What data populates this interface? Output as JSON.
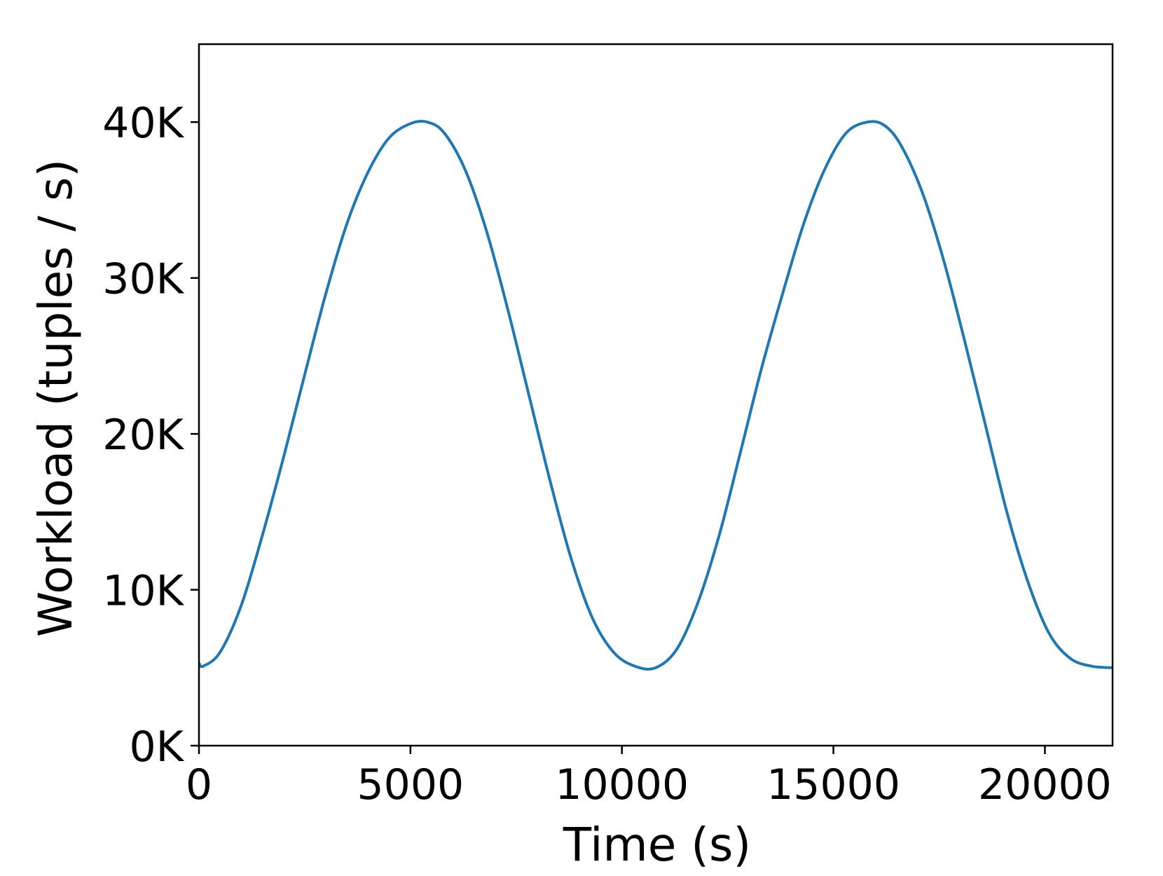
{
  "chart_data": {
    "type": "line",
    "title": "",
    "xlabel": "Time (s)",
    "ylabel": "Workload (tuples / s)",
    "xlim": [
      0,
      21600
    ],
    "ylim": [
      0,
      45000
    ],
    "grid": false,
    "x_ticks": [
      {
        "value": 0,
        "label": "0"
      },
      {
        "value": 5000,
        "label": "5000"
      },
      {
        "value": 10000,
        "label": "10000"
      },
      {
        "value": 15000,
        "label": "15000"
      },
      {
        "value": 20000,
        "label": "20000"
      }
    ],
    "y_ticks": [
      {
        "value": 0,
        "label": "0K"
      },
      {
        "value": 10000,
        "label": "10K"
      },
      {
        "value": 20000,
        "label": "20K"
      },
      {
        "value": 30000,
        "label": "30K"
      },
      {
        "value": 40000,
        "label": "40K"
      }
    ],
    "series": [
      {
        "color": "#1f77b4",
        "x": [
          0,
          100,
          500,
          1000,
          1500,
          2000,
          2500,
          3000,
          3500,
          4000,
          4500,
          5000,
          5400,
          5800,
          6300,
          6800,
          7300,
          7800,
          8300,
          8800,
          9300,
          9800,
          10300,
          10800,
          11300,
          11800,
          12300,
          12800,
          13300,
          13800,
          14300,
          14800,
          15300,
          15800,
          16200,
          16600,
          17100,
          17600,
          18100,
          18600,
          19100,
          19600,
          20100,
          20600,
          21100,
          21600
        ],
        "y": [
          5300,
          5100,
          6000,
          9000,
          13500,
          18500,
          23800,
          29000,
          33500,
          36800,
          39000,
          39900,
          40000,
          39300,
          36900,
          33000,
          28000,
          22500,
          17000,
          12000,
          8200,
          6000,
          5100,
          5000,
          6200,
          9200,
          13500,
          18800,
          24200,
          29000,
          33500,
          37000,
          39300,
          40000,
          39800,
          38500,
          35500,
          31200,
          26000,
          20500,
          15000,
          10500,
          7200,
          5600,
          5100,
          5000
        ]
      }
    ]
  }
}
